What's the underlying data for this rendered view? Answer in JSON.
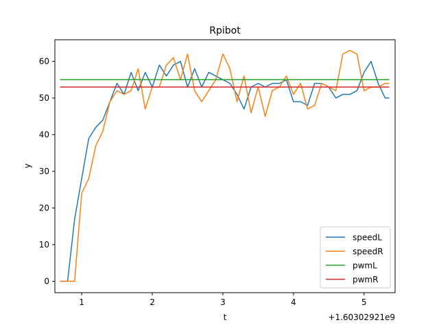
{
  "chart_data": {
    "type": "line",
    "title": "Rpibot",
    "xlabel": "t",
    "ylabel": "y",
    "x_offset_label": "+1.60302921e9",
    "xlim": [
      0.62,
      5.44
    ],
    "ylim": [
      -3.1,
      65.9
    ],
    "xticks": [
      1,
      2,
      3,
      4,
      5
    ],
    "yticks": [
      0,
      10,
      20,
      30,
      40,
      50,
      60
    ],
    "grid": false,
    "legend_position": "lower right",
    "series": [
      {
        "name": "speedL",
        "color": "#1f77b4",
        "x": [
          0.7,
          0.8,
          0.9,
          1.0,
          1.1,
          1.2,
          1.3,
          1.4,
          1.5,
          1.6,
          1.7,
          1.8,
          1.9,
          2.0,
          2.1,
          2.2,
          2.3,
          2.4,
          2.5,
          2.6,
          2.7,
          2.8,
          2.9,
          3.0,
          3.1,
          3.2,
          3.3,
          3.4,
          3.5,
          3.6,
          3.7,
          3.8,
          3.9,
          4.0,
          4.1,
          4.2,
          4.3,
          4.4,
          4.5,
          4.6,
          4.7,
          4.8,
          4.9,
          5.0,
          5.1,
          5.2,
          5.3,
          5.35
        ],
        "values": [
          0,
          0,
          17,
          28,
          39,
          42,
          44,
          49,
          54,
          51,
          57,
          52,
          57,
          53,
          59,
          56,
          59,
          60,
          53,
          58,
          53,
          57,
          56,
          55,
          54,
          51,
          47,
          53,
          54,
          53,
          54,
          54,
          55,
          49,
          49,
          48,
          54,
          54,
          53,
          50,
          51,
          51,
          52,
          57,
          60,
          54,
          50,
          50
        ]
      },
      {
        "name": "speedR",
        "color": "#ff7f0e",
        "x": [
          0.7,
          0.8,
          0.9,
          1.0,
          1.1,
          1.2,
          1.3,
          1.4,
          1.5,
          1.6,
          1.7,
          1.8,
          1.9,
          2.0,
          2.1,
          2.2,
          2.3,
          2.4,
          2.5,
          2.6,
          2.7,
          2.8,
          2.9,
          3.0,
          3.1,
          3.2,
          3.3,
          3.4,
          3.5,
          3.6,
          3.7,
          3.8,
          3.9,
          4.0,
          4.1,
          4.2,
          4.3,
          4.4,
          4.5,
          4.6,
          4.7,
          4.8,
          4.9,
          5.0,
          5.1,
          5.2,
          5.3,
          5.35
        ],
        "values": [
          0,
          0,
          0,
          24,
          28,
          37,
          41,
          49,
          52,
          51,
          52,
          58,
          47,
          53,
          53,
          59,
          61,
          55,
          62,
          52,
          49,
          52,
          55,
          62,
          58,
          49,
          56,
          46,
          53,
          45,
          52,
          53,
          56,
          51,
          54,
          47,
          48,
          54,
          53,
          52,
          62,
          63,
          62,
          52,
          53,
          53,
          54,
          54
        ]
      },
      {
        "name": "pwmL",
        "color": "#2ca02c",
        "x": [
          0.7,
          5.35
        ],
        "values": [
          55,
          55
        ]
      },
      {
        "name": "pwmR",
        "color": "#d62728",
        "x": [
          0.7,
          5.35
        ],
        "values": [
          53,
          53
        ]
      }
    ]
  }
}
